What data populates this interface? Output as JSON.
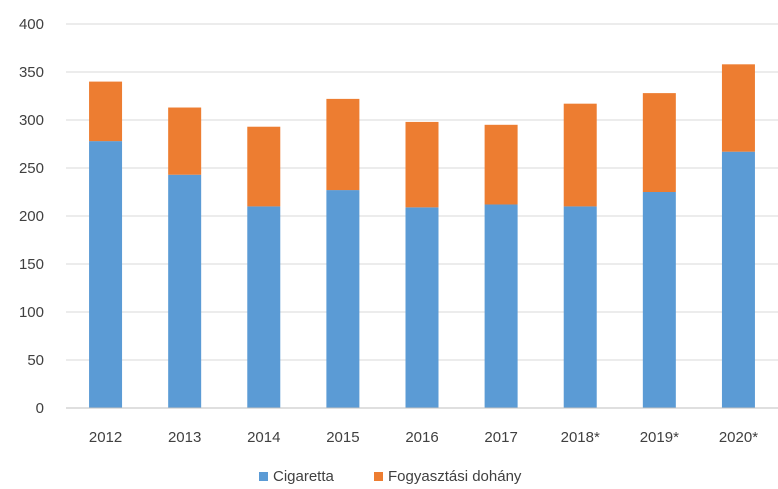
{
  "chart_data": {
    "type": "bar",
    "stacked": true,
    "categories": [
      "2012",
      "2013",
      "2014",
      "2015",
      "2016",
      "2017",
      "2018*",
      "2019*",
      "2020*"
    ],
    "series": [
      {
        "name": "Cigaretta",
        "color": "#5b9bd5",
        "values": [
          278,
          243,
          210,
          227,
          209,
          212,
          210,
          225,
          267
        ]
      },
      {
        "name": "Fogyasztási dohány",
        "color": "#ed7d31",
        "values": [
          62,
          70,
          83,
          95,
          89,
          83,
          107,
          103,
          91
        ]
      }
    ],
    "ylim": [
      0,
      400
    ],
    "yticks": [
      0,
      50,
      100,
      150,
      200,
      250,
      300,
      350,
      400
    ],
    "grid": true,
    "legend": "bottom-center"
  }
}
